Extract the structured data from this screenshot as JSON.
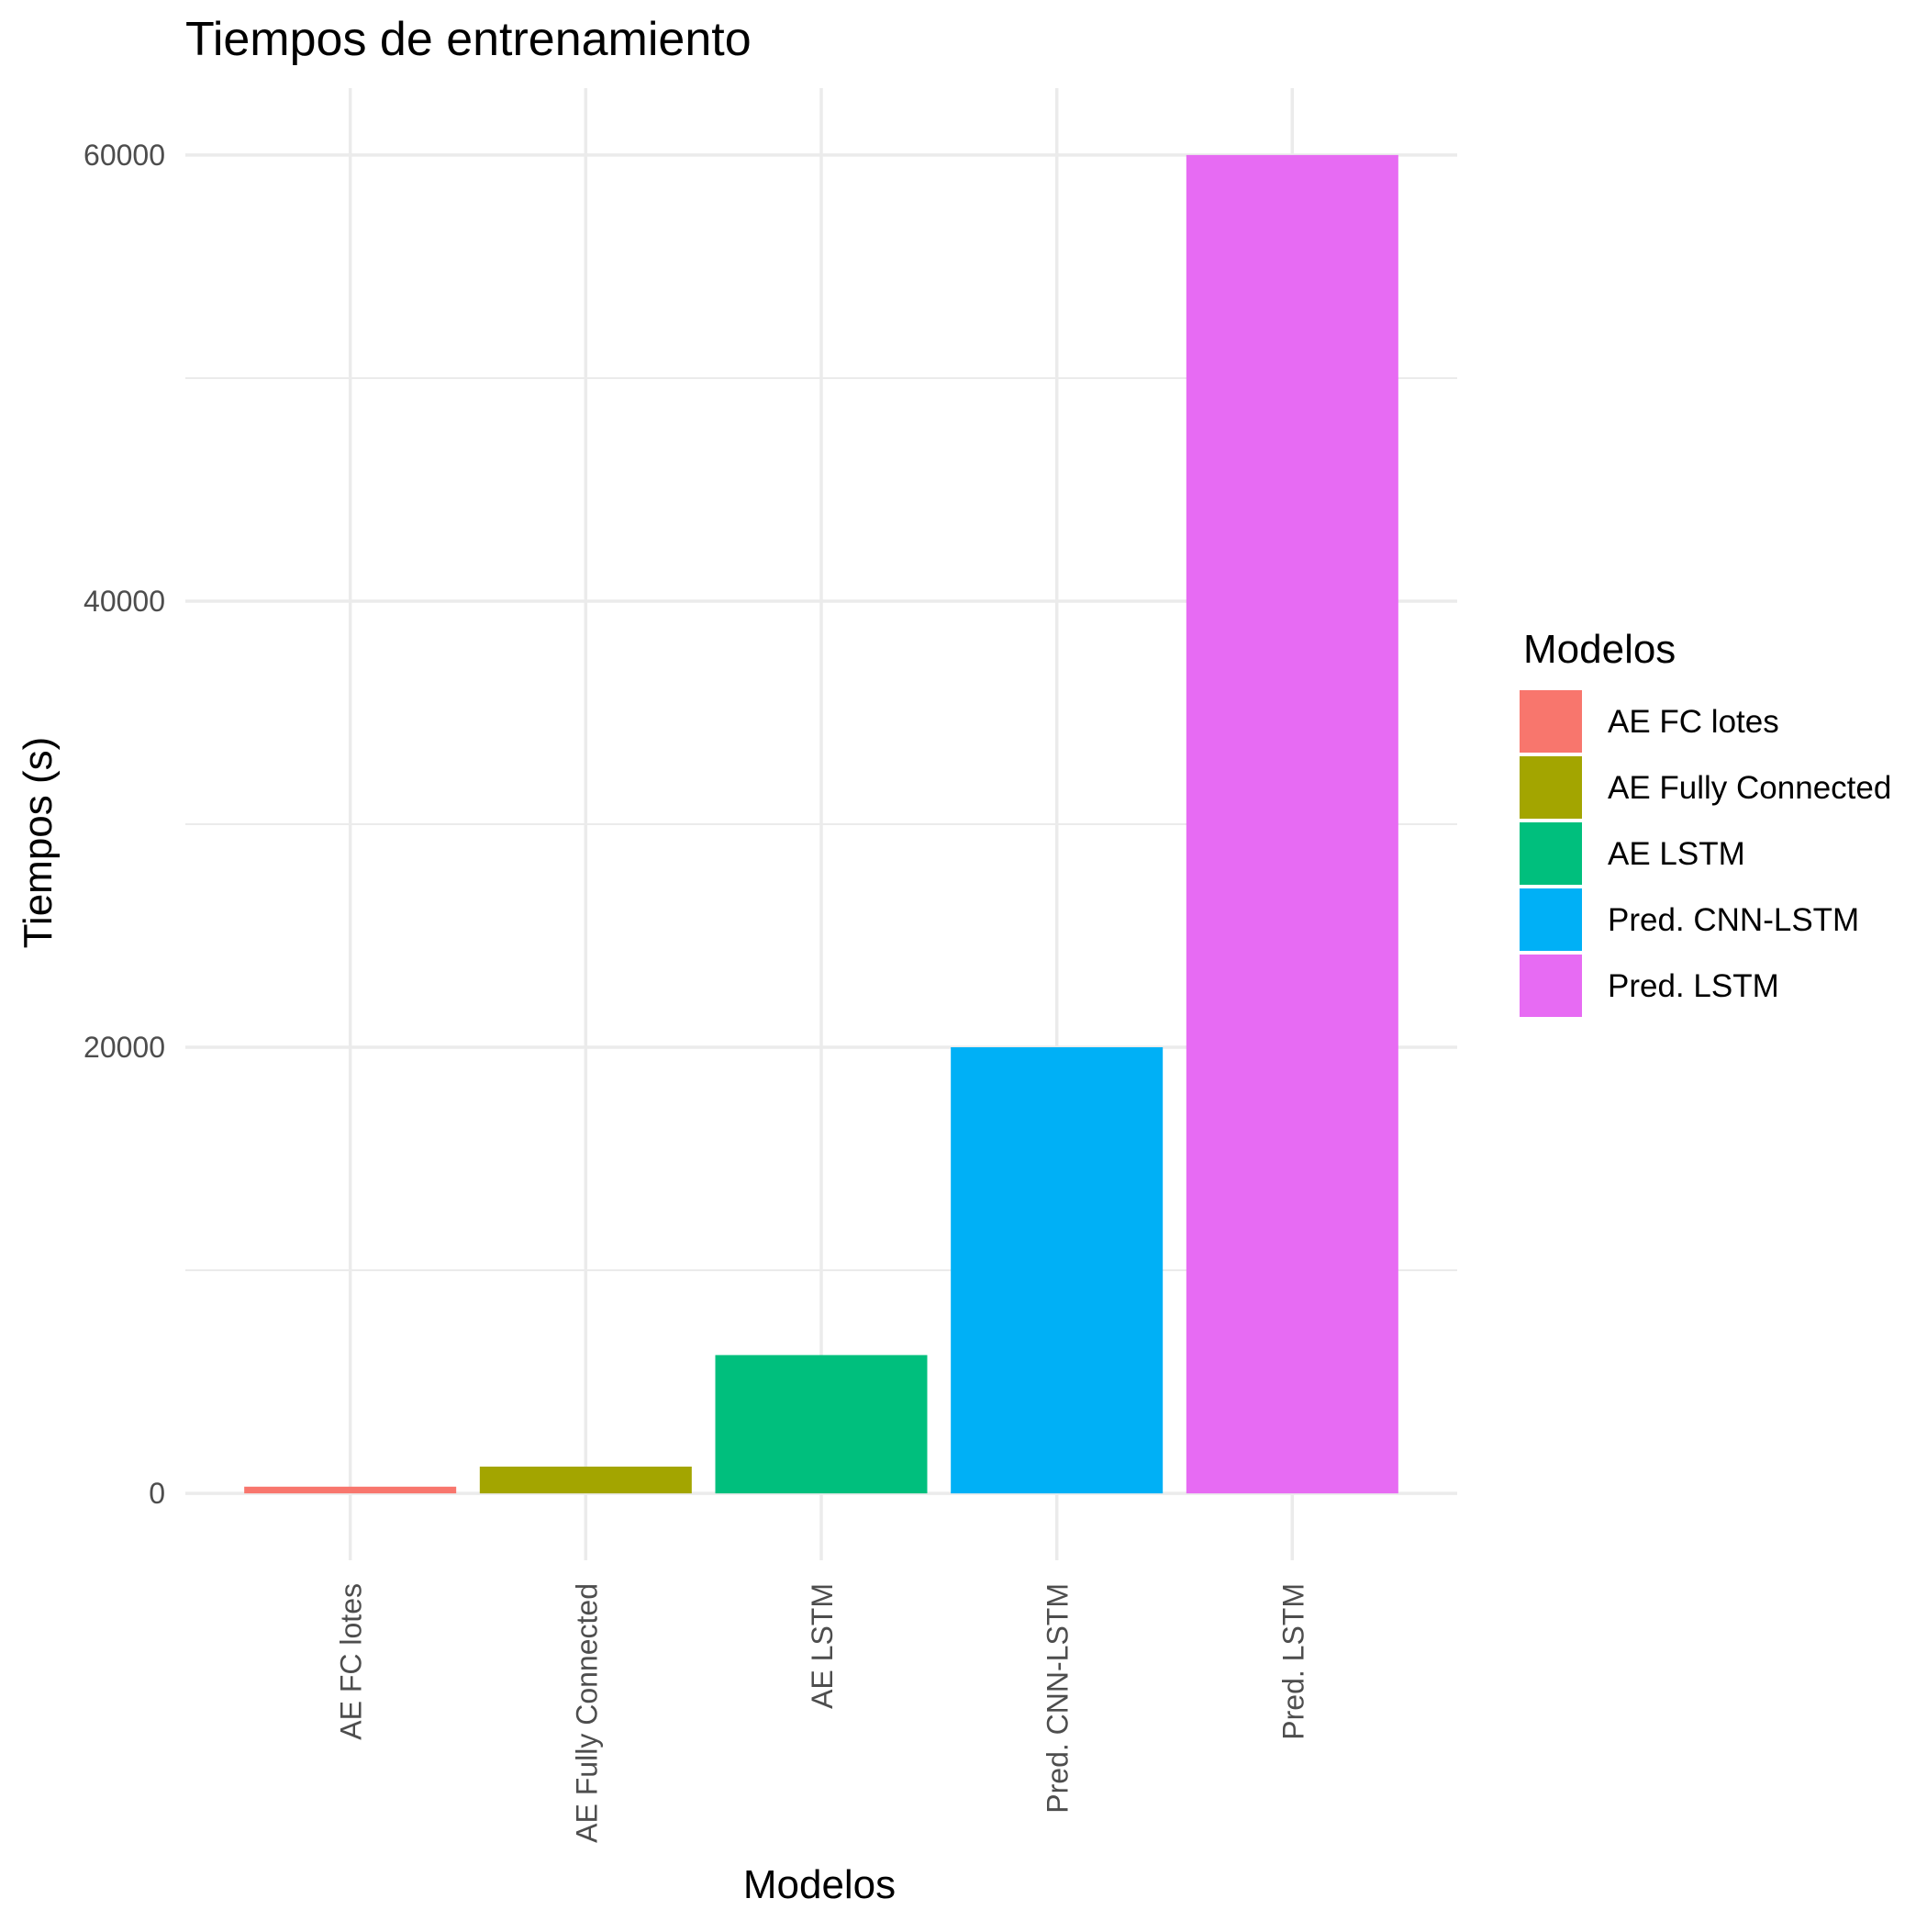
{
  "chart_data": {
    "type": "bar",
    "title": "Tiempos de entrenamiento",
    "xlabel": "Modelos",
    "ylabel": "Tiempos (s)",
    "categories": [
      "AE FC lotes",
      "AE Fully Connected",
      "AE LSTM",
      "Pred. CNN-LSTM",
      "Pred. LSTM"
    ],
    "values": [
      300,
      1200,
      6200,
      20000,
      60000
    ],
    "colors": [
      "#F8766D",
      "#A3A500",
      "#00BF7D",
      "#00B0F6",
      "#E76BF3"
    ],
    "ylim": [
      -3000,
      63000
    ],
    "yticks": [
      0,
      20000,
      40000,
      60000
    ],
    "ytick_labels": [
      "0",
      "20000",
      "40000",
      "60000"
    ],
    "grid": true,
    "x_tick_rotation": -90,
    "legend": {
      "title": "Modelos",
      "placement": "right",
      "entries": [
        "AE FC lotes",
        "AE Fully Connected",
        "AE LSTM",
        "Pred. CNN-LSTM",
        "Pred. LSTM"
      ]
    }
  }
}
